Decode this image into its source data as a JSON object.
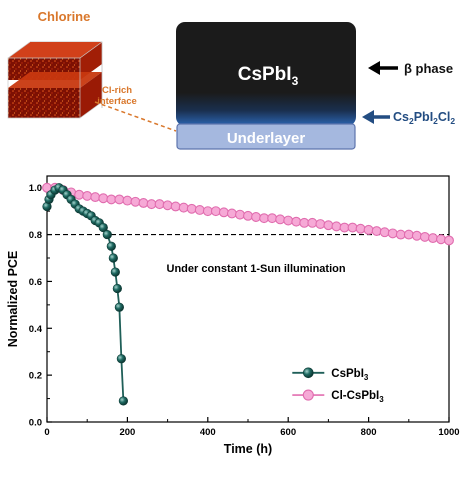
{
  "schematic": {
    "chlorine_label": "Chlorine",
    "interface_label_line1": "Cl-rich",
    "interface_label_line2": "interface",
    "film_label_main": "CsPbI",
    "film_label_sub": "3",
    "underlayer_label": "Underlayer",
    "beta_label": "β phase",
    "interface_phase_main": "Cs",
    "interface_phase_sub1": "2",
    "interface_phase_mid1": "PbI",
    "interface_phase_sub2": "2",
    "interface_phase_mid2": "Cl",
    "interface_phase_sub3": "2",
    "colors": {
      "chlorine_text": "#d9772b",
      "film_dark": "#1b1b1b",
      "film_blue": "#2c67b5",
      "underlayer_fill": "#a5b8df",
      "underlayer_stroke": "#5d74ad",
      "cube_red": "#9e1a05",
      "cube_orange": "#e0521a",
      "phase_arrow": "#234d82"
    }
  },
  "chart_data": {
    "type": "scatter",
    "title": "",
    "xlabel": "Time (h)",
    "ylabel": "Normalized PCE",
    "xlim": [
      0,
      1000
    ],
    "ylim": [
      0,
      1.05
    ],
    "xticks": [
      "0",
      "200",
      "400",
      "600",
      "800",
      "1000"
    ],
    "yticks": [
      "0.0",
      "0.2",
      "0.4",
      "0.6",
      "0.8",
      "1.0"
    ],
    "annotation": "Under constant 1-Sun illumination",
    "reference_line_y": 0.8,
    "legend_position": "bottom-right",
    "series": [
      {
        "name_main": "CsPbI",
        "name_sub": "3",
        "color": "#1f6b63",
        "marker": "sphere",
        "x": [
          0,
          5,
          10,
          20,
          30,
          40,
          50,
          60,
          70,
          80,
          90,
          100,
          110,
          120,
          130,
          140,
          150,
          160,
          165,
          170,
          175,
          180,
          185,
          190
        ],
        "y": [
          0.92,
          0.95,
          0.97,
          0.99,
          1.0,
          0.99,
          0.97,
          0.95,
          0.93,
          0.91,
          0.9,
          0.89,
          0.88,
          0.86,
          0.85,
          0.83,
          0.8,
          0.75,
          0.7,
          0.64,
          0.57,
          0.49,
          0.27,
          0.09
        ]
      },
      {
        "name_main": "Cl-CsPbI",
        "name_sub": "3",
        "color": "#ee86c2",
        "marker": "circle",
        "x": [
          0,
          20,
          40,
          60,
          80,
          100,
          120,
          140,
          160,
          180,
          200,
          220,
          240,
          260,
          280,
          300,
          320,
          340,
          360,
          380,
          400,
          420,
          440,
          460,
          480,
          500,
          520,
          540,
          560,
          580,
          600,
          620,
          640,
          660,
          680,
          700,
          720,
          740,
          760,
          780,
          800,
          820,
          840,
          860,
          880,
          900,
          920,
          940,
          960,
          980,
          1000
        ],
        "y": [
          1.0,
          1.0,
          0.99,
          0.98,
          0.97,
          0.965,
          0.96,
          0.955,
          0.95,
          0.95,
          0.945,
          0.94,
          0.935,
          0.93,
          0.93,
          0.925,
          0.92,
          0.915,
          0.91,
          0.905,
          0.9,
          0.9,
          0.895,
          0.89,
          0.885,
          0.88,
          0.875,
          0.87,
          0.87,
          0.865,
          0.86,
          0.855,
          0.85,
          0.85,
          0.845,
          0.84,
          0.835,
          0.83,
          0.83,
          0.825,
          0.82,
          0.815,
          0.81,
          0.805,
          0.8,
          0.8,
          0.795,
          0.79,
          0.785,
          0.78,
          0.775
        ]
      }
    ]
  }
}
